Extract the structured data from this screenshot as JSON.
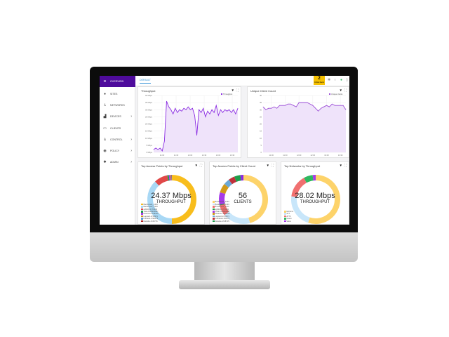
{
  "sidebar": {
    "items": [
      {
        "label": "OVERVIEW",
        "icon": "wifi-icon",
        "glyph": "≋",
        "chev": ""
      },
      {
        "label": "SITES",
        "icon": "pin-icon",
        "glyph": "●",
        "chev": ""
      },
      {
        "label": "NETWORKS",
        "icon": "network-icon",
        "glyph": "⅄",
        "chev": ""
      },
      {
        "label": "DEVICES",
        "icon": "device-icon",
        "glyph": "▟",
        "chev": "›"
      },
      {
        "label": "CLIENTS",
        "icon": "clients-icon",
        "glyph": "▭",
        "chev": ""
      },
      {
        "label": "CONTROL",
        "icon": "control-icon",
        "glyph": "♙",
        "chev": "›"
      },
      {
        "label": "POLICY",
        "icon": "globe-icon",
        "glyph": "◉",
        "chev": "›"
      },
      {
        "label": "ADMIN",
        "icon": "gear-icon",
        "glyph": "✱",
        "chev": "›"
      }
    ]
  },
  "topbar": {
    "tab": "DEFAULT",
    "alert_count": "2",
    "alert_label": "Critical Alerts",
    "colors": {
      "accent": "#4e0b9c",
      "alert": "#f5c000"
    }
  },
  "chart_data": [
    {
      "type": "area",
      "title": "Throughput",
      "series": [
        {
          "name": "Throughput",
          "values": [
            2,
            3,
            2,
            3,
            1,
            8,
            36,
            32,
            30,
            27,
            31,
            28,
            30,
            29,
            31,
            30,
            32,
            30,
            31,
            26,
            12,
            30,
            28,
            31,
            25,
            29,
            27,
            30,
            28,
            33,
            26,
            30,
            28,
            30,
            29,
            30,
            28,
            30,
            27,
            31
          ]
        }
      ],
      "yticks": [
        "0 Mbps",
        "5 Mbps",
        "10 Mbps",
        "15 Mbps",
        "20 Mbps",
        "25 Mbps",
        "30 Mbps",
        "35 Mbps",
        "40 Mbps"
      ],
      "ylim": [
        0,
        40
      ],
      "xticks": [
        "11:00",
        "11:30",
        "12:00",
        "12:30",
        "13:00",
        "13:30"
      ],
      "color": "#8a2be2",
      "grid": true,
      "legend": "top-right"
    },
    {
      "type": "area",
      "title": "Unique Client Count",
      "series": [
        {
          "name": "Unique clients",
          "values": [
            32,
            30,
            31,
            31,
            32,
            31,
            33,
            33,
            33,
            34,
            34,
            33,
            32,
            35,
            35,
            35,
            35,
            34,
            33,
            31,
            29,
            31,
            32,
            33,
            32,
            34,
            33,
            33,
            33,
            33,
            30
          ]
        }
      ],
      "yticks": [
        "0",
        "5",
        "10",
        "15",
        "20",
        "25",
        "30",
        "35",
        "40"
      ],
      "ylim": [
        0,
        40
      ],
      "xticks": [
        "11:00",
        "11:30",
        "12:00",
        "12:30",
        "13:00",
        "13:30"
      ],
      "color": "#9b4dd6",
      "grid": true,
      "legend": "top-right"
    },
    {
      "type": "pie",
      "title": "Top Access Points by Throughput",
      "center_value": "24.37 Mbps",
      "center_label": "THROUGHPUT",
      "slices": [
        {
          "label": "Backbone1_1403",
          "value": 50,
          "color": "#f8bd1c"
        },
        {
          "label": "Backbone2_1403",
          "value": 38,
          "color": "#a8d8f5"
        },
        {
          "label": "ap5400-1770032",
          "value": 9,
          "color": "#e04848"
        },
        {
          "label": "Vista-1523210387",
          "value": 1,
          "color": "#1e9e4a"
        },
        {
          "label": "Dreamer-1729310",
          "value": 1,
          "color": "#a63ae8"
        },
        {
          "label": "Lapcard-1728371",
          "value": 0.5,
          "color": "#d19a1a"
        },
        {
          "label": "Furbank-1728174",
          "value": 0.3,
          "color": "#5a9bd6"
        },
        {
          "label": "Danube-1728715",
          "value": 0.2,
          "color": "#b22222"
        }
      ]
    },
    {
      "type": "pie",
      "title": "Top Access Points by Client Count",
      "center_value": "56",
      "center_label": "CLIENTS",
      "slices": [
        {
          "label": "Backbone1_1403",
          "value": 45,
          "color": "#fdd36a"
        },
        {
          "label": "Backbone2_1403",
          "value": 18,
          "color": "#c8e6fa"
        },
        {
          "label": "Breakroom_1403",
          "value": 7,
          "color": "#f07070"
        },
        {
          "label": "ap5400-1770032",
          "value": 0.5,
          "color": "#1e9e4a"
        },
        {
          "label": "Vista-1523210387",
          "value": 8,
          "color": "#a63ae8"
        },
        {
          "label": "Dreamer-1729310",
          "value": 6,
          "color": "#d19a1a"
        },
        {
          "label": "Lapcard-1728371",
          "value": 4,
          "color": "#6aa8d8"
        },
        {
          "label": "Furbank-1728174",
          "value": 4,
          "color": "#c0303a"
        },
        {
          "label": "Danube-1728715",
          "value": 4,
          "color": "#1e9e4a"
        },
        {
          "label": "",
          "value": 2,
          "color": "#8a2be2"
        }
      ]
    },
    {
      "type": "pie",
      "title": "Top Networks by Throughput",
      "center_value": "28.02 Mbps",
      "center_label": "THROUGHPUT",
      "slices": [
        {
          "label": "Extreme",
          "value": 55,
          "color": "#fdd36a"
        },
        {
          "label": "ATT",
          "value": 22,
          "color": "#c8e6fa"
        },
        {
          "label": "ATT2",
          "value": 15,
          "color": "#f07070"
        },
        {
          "label": "Guest",
          "value": 6,
          "color": "#2fb860"
        },
        {
          "label": "Voice",
          "value": 2,
          "color": "#a63ae8"
        }
      ]
    }
  ]
}
